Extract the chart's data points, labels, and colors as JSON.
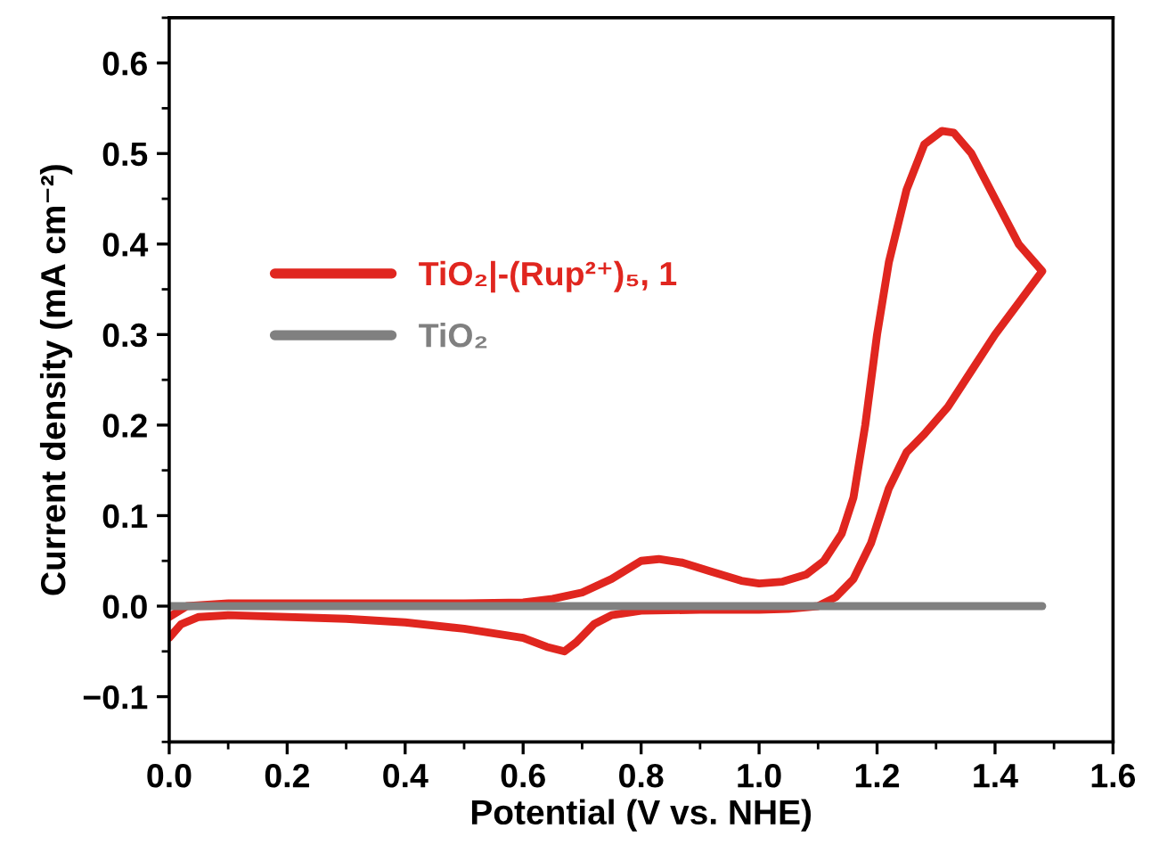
{
  "chart_data": {
    "type": "line",
    "xlabel": "Potential (V vs. NHE)",
    "ylabel": "Current density (mA cm⁻²)",
    "xlim": [
      0,
      1.6
    ],
    "ylim": [
      -0.15,
      0.65
    ],
    "xticks": [
      {
        "value": 0,
        "label": "0.0"
      },
      0.2,
      0.4,
      0.6,
      0.8,
      {
        "value": 1,
        "label": "1.0"
      },
      1.2,
      1.4,
      1.6
    ],
    "yticks": [
      {
        "value": -0.1,
        "label": "−0.1"
      },
      {
        "value": 0,
        "label": "0.0"
      },
      0.1,
      0.2,
      0.3,
      0.4,
      0.5,
      0.6
    ],
    "grid": false,
    "legend": "left",
    "marker": "none",
    "line_style": "solid",
    "series": [
      {
        "name": "TiO₂|-(Rup²⁺)₅, 1",
        "color": "#e0261f",
        "x": [
          0.0,
          0.03,
          0.1,
          0.3,
          0.5,
          0.6,
          0.65,
          0.7,
          0.75,
          0.8,
          0.83,
          0.87,
          0.92,
          0.97,
          1.0,
          1.04,
          1.08,
          1.11,
          1.14,
          1.16,
          1.18,
          1.2,
          1.22,
          1.25,
          1.28,
          1.31,
          1.33,
          1.36,
          1.4,
          1.44,
          1.48,
          1.44,
          1.4,
          1.36,
          1.32,
          1.28,
          1.25,
          1.22,
          1.19,
          1.16,
          1.13,
          1.1,
          1.05,
          1.0,
          0.9,
          0.8,
          0.75,
          0.72,
          0.69,
          0.67,
          0.64,
          0.6,
          0.5,
          0.4,
          0.3,
          0.1,
          0.05,
          0.02,
          0.0
        ],
        "values": [
          -0.012,
          0.0,
          0.003,
          0.003,
          0.003,
          0.004,
          0.008,
          0.015,
          0.03,
          0.05,
          0.052,
          0.048,
          0.038,
          0.028,
          0.025,
          0.027,
          0.035,
          0.05,
          0.08,
          0.12,
          0.2,
          0.3,
          0.38,
          0.46,
          0.51,
          0.525,
          0.523,
          0.5,
          0.45,
          0.4,
          0.37,
          0.335,
          0.3,
          0.26,
          0.22,
          0.19,
          0.17,
          0.13,
          0.07,
          0.03,
          0.01,
          0.0,
          -0.003,
          -0.004,
          -0.004,
          -0.005,
          -0.01,
          -0.02,
          -0.04,
          -0.05,
          -0.045,
          -0.035,
          -0.025,
          -0.018,
          -0.014,
          -0.01,
          -0.012,
          -0.02,
          -0.035
        ]
      },
      {
        "name": "TiO₂",
        "color": "#808080",
        "x": [
          0.0,
          1.48
        ],
        "values": [
          0.0,
          0.0
        ]
      }
    ]
  }
}
